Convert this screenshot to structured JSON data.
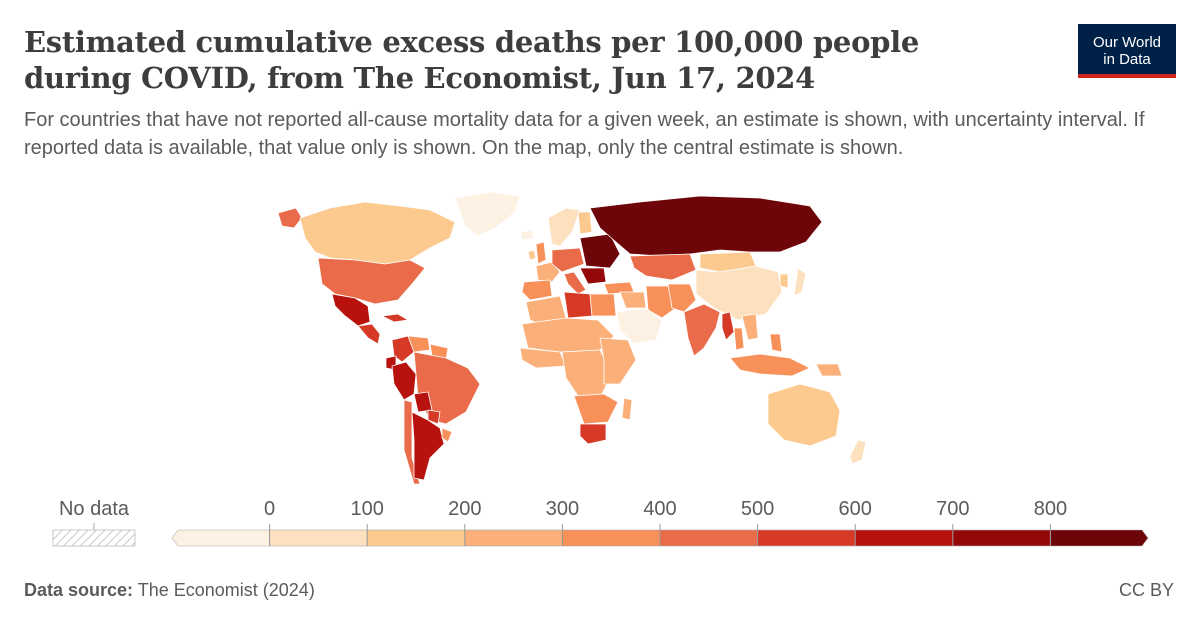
{
  "header": {
    "title": "Estimated cumulative excess deaths per 100,000 people during COVID, from The Economist, Jun 17, 2024",
    "subtitle": "For countries that have not reported all-cause mortality data for a given week, an estimate is shown, with uncertainty interval. If reported data is available, that value only is shown. On the map, only the central estimate is shown.",
    "logo_line1": "Our World",
    "logo_line2": "in Data"
  },
  "chart_data": {
    "type": "choropleth",
    "title": "Estimated cumulative excess deaths per 100,000 people during COVID, from The Economist, Jun 17, 2024",
    "no_data_label": "No data",
    "no_data_color": "#e6e6e6",
    "legend_ticks": [
      0,
      100,
      200,
      300,
      400,
      500,
      600,
      700,
      800
    ],
    "bins": [
      {
        "range": "< 0",
        "color": "#fdf1e3"
      },
      {
        "range": "0–100",
        "color": "#fde1bf"
      },
      {
        "range": "100–200",
        "color": "#fcca8f"
      },
      {
        "range": "200–300",
        "color": "#fbb07a"
      },
      {
        "range": "300–400",
        "color": "#f8905a"
      },
      {
        "range": "400–500",
        "color": "#ea6b4a"
      },
      {
        "range": "500–600",
        "color": "#d63a27"
      },
      {
        "range": "600–700",
        "color": "#b8120e"
      },
      {
        "range": "700–800",
        "color": "#95080a"
      },
      {
        "range": "> 800",
        "color": "#6e0508"
      }
    ],
    "regions": [
      {
        "name": "Canada",
        "bin": "100–200"
      },
      {
        "name": "United States",
        "bin": "400–500"
      },
      {
        "name": "Alaska (USA)",
        "bin": "400–500"
      },
      {
        "name": "Greenland",
        "bin": "< 0"
      },
      {
        "name": "Mexico",
        "bin": "600–700"
      },
      {
        "name": "Central America",
        "bin": "500–600"
      },
      {
        "name": "Cuba",
        "bin": "500–600"
      },
      {
        "name": "Colombia",
        "bin": "500–600"
      },
      {
        "name": "Venezuela",
        "bin": "300–400"
      },
      {
        "name": "Guianas",
        "bin": "300–400"
      },
      {
        "name": "Ecuador",
        "bin": "600–700"
      },
      {
        "name": "Peru",
        "bin": "600–700"
      },
      {
        "name": "Brazil",
        "bin": "400–500"
      },
      {
        "name": "Bolivia",
        "bin": "600–700"
      },
      {
        "name": "Paraguay",
        "bin": "500–600"
      },
      {
        "name": "Chile",
        "bin": "400–500"
      },
      {
        "name": "Argentina",
        "bin": "600–700"
      },
      {
        "name": "Uruguay",
        "bin": "300–400"
      },
      {
        "name": "Iceland",
        "bin": "< 0"
      },
      {
        "name": "United Kingdom",
        "bin": "300–400"
      },
      {
        "name": "Ireland",
        "bin": "100–200"
      },
      {
        "name": "Iberia",
        "bin": "300–400"
      },
      {
        "name": "France",
        "bin": "200–300"
      },
      {
        "name": "Scandinavia",
        "bin": "0–100"
      },
      {
        "name": "Finland",
        "bin": "100–200"
      },
      {
        "name": "Central Europe",
        "bin": "400–500"
      },
      {
        "name": "Italy",
        "bin": "400–500"
      },
      {
        "name": "Eastern Europe",
        "bin": "> 800"
      },
      {
        "name": "Balkans",
        "bin": "700–800"
      },
      {
        "name": "Russia",
        "bin": "> 800"
      },
      {
        "name": "Kazakhstan",
        "bin": "400–500"
      },
      {
        "name": "Mongolia",
        "bin": "100–200"
      },
      {
        "name": "China",
        "bin": "0–100"
      },
      {
        "name": "Japan",
        "bin": "0–100"
      },
      {
        "name": "Korea",
        "bin": "100–200"
      },
      {
        "name": "Turkey",
        "bin": "300–400"
      },
      {
        "name": "Iran",
        "bin": "300–400"
      },
      {
        "name": "Arabian Peninsula",
        "bin": "< 0"
      },
      {
        "name": "Iraq / Syria",
        "bin": "200–300"
      },
      {
        "name": "Afghanistan / Pakistan",
        "bin": "300–400"
      },
      {
        "name": "India",
        "bin": "400–500"
      },
      {
        "name": "Myanmar",
        "bin": "500–600"
      },
      {
        "name": "Thailand",
        "bin": "300–400"
      },
      {
        "name": "Vietnam / Laos",
        "bin": "200–300"
      },
      {
        "name": "Philippines",
        "bin": "300–400"
      },
      {
        "name": "Indonesia",
        "bin": "300–400"
      },
      {
        "name": "Papua New Guinea",
        "bin": "200–300"
      },
      {
        "name": "Australia",
        "bin": "100–200"
      },
      {
        "name": "New Zealand",
        "bin": "0–100"
      },
      {
        "name": "North Africa West",
        "bin": "200–300"
      },
      {
        "name": "Libya",
        "bin": "500–600"
      },
      {
        "name": "Egypt",
        "bin": "300–400"
      },
      {
        "name": "Sahel",
        "bin": "200–300"
      },
      {
        "name": "West Africa Coast",
        "bin": "200–300"
      },
      {
        "name": "Central Africa",
        "bin": "200–300"
      },
      {
        "name": "East Africa",
        "bin": "200–300"
      },
      {
        "name": "Southern Africa",
        "bin": "300–400"
      },
      {
        "name": "South Africa",
        "bin": "500–600"
      },
      {
        "name": "Madagascar",
        "bin": "200–300"
      }
    ]
  },
  "footer": {
    "source_label": "Data source:",
    "source_value": "The Economist (2024)",
    "license": "CC BY"
  }
}
